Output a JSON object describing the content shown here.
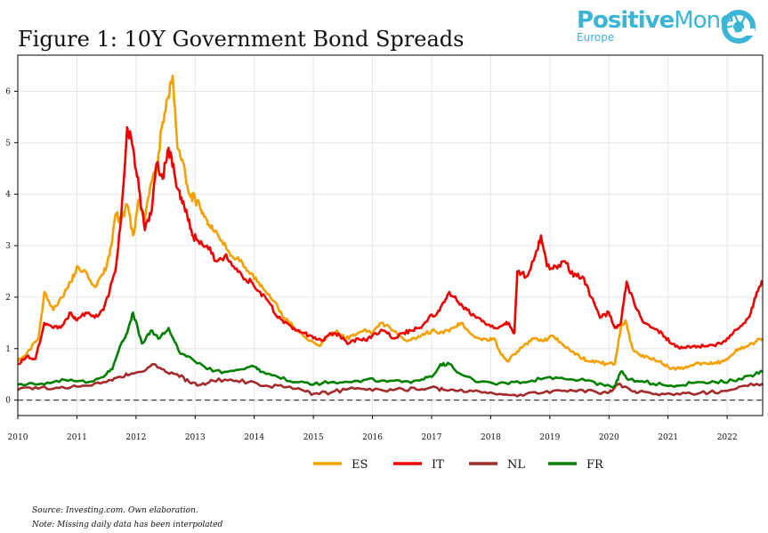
{
  "title": "Figure 1: 10Y Government Bond Spreads",
  "logo": {
    "brand_positive": "Positive",
    "brand_money": "Money",
    "region": "Europe"
  },
  "colors": {
    "ES": "#f5a000",
    "IT": "#ee0000",
    "NL": "#a52a2a",
    "FR": "#008000",
    "logo": "#3ab5d6"
  },
  "notes": {
    "source": "Source: Investing.com. Own elaboration.",
    "missing": "Note: Missing daily data has been interpolated"
  },
  "chart_data": {
    "type": "line",
    "title": "Figure 1: 10Y Government Bond Spreads",
    "xlabel": "",
    "ylabel": "",
    "xlim": [
      2010.0,
      2022.6
    ],
    "ylim": [
      -0.3,
      6.7
    ],
    "grid": true,
    "legend_position": "bottom-center",
    "x_ticks": [
      2010,
      2011,
      2012,
      2013,
      2014,
      2015,
      2016,
      2017,
      2018,
      2019,
      2020,
      2021,
      2022
    ],
    "x_tick_labels": [
      "2010",
      "2011",
      "2012",
      "2013",
      "2014",
      "2015",
      "2016",
      "2017",
      "2018",
      "2019",
      "2020",
      "2021",
      "2022"
    ],
    "y_ticks": [
      0,
      1,
      2,
      3,
      4,
      5,
      6
    ],
    "y_tick_labels": [
      "0",
      "1",
      "2",
      "3",
      "4",
      "5",
      "6"
    ],
    "reference_line": {
      "y": 0,
      "style": "dashed"
    },
    "series": [
      {
        "name": "ES",
        "color": "#f5a000",
        "x": [
          2010.0,
          2010.15,
          2010.35,
          2010.45,
          2010.6,
          2010.75,
          2010.9,
          2011.0,
          2011.15,
          2011.3,
          2011.45,
          2011.55,
          2011.65,
          2011.75,
          2011.85,
          2011.95,
          2012.05,
          2012.15,
          2012.25,
          2012.35,
          2012.45,
          2012.55,
          2012.62,
          2012.7,
          2012.8,
          2012.9,
          2013.0,
          2013.1,
          2013.2,
          2013.3,
          2013.45,
          2013.6,
          2013.75,
          2013.9,
          2014.05,
          2014.2,
          2014.35,
          2014.5,
          2014.65,
          2014.8,
          2014.95,
          2015.1,
          2015.25,
          2015.4,
          2015.55,
          2015.7,
          2015.85,
          2016.0,
          2016.15,
          2016.3,
          2016.45,
          2016.6,
          2016.75,
          2016.9,
          2017.05,
          2017.2,
          2017.35,
          2017.5,
          2017.65,
          2017.8,
          2017.95,
          2018.05,
          2018.15,
          2018.3,
          2018.45,
          2018.6,
          2018.75,
          2018.9,
          2019.05,
          2019.2,
          2019.35,
          2019.5,
          2019.65,
          2019.8,
          2019.95,
          2020.1,
          2020.2,
          2020.28,
          2020.4,
          2020.55,
          2020.7,
          2020.85,
          2021.0,
          2021.15,
          2021.3,
          2021.45,
          2021.6,
          2021.75,
          2021.9,
          2022.05,
          2022.2,
          2022.35,
          2022.5,
          2022.6
        ],
        "values": [
          0.75,
          0.9,
          1.2,
          2.1,
          1.75,
          2.0,
          2.3,
          2.6,
          2.5,
          2.2,
          2.45,
          2.8,
          3.6,
          3.5,
          3.8,
          3.2,
          3.9,
          3.5,
          4.2,
          4.5,
          5.4,
          5.9,
          6.3,
          4.9,
          4.6,
          4.0,
          3.9,
          3.7,
          3.5,
          3.3,
          3.1,
          2.8,
          2.7,
          2.5,
          2.3,
          2.1,
          1.9,
          1.6,
          1.45,
          1.3,
          1.15,
          1.05,
          1.25,
          1.35,
          1.2,
          1.25,
          1.35,
          1.3,
          1.5,
          1.4,
          1.25,
          1.15,
          1.2,
          1.3,
          1.35,
          1.3,
          1.4,
          1.5,
          1.3,
          1.2,
          1.15,
          1.2,
          0.95,
          0.75,
          0.95,
          1.1,
          1.2,
          1.15,
          1.25,
          1.1,
          0.95,
          0.85,
          0.75,
          0.75,
          0.7,
          0.7,
          1.4,
          1.55,
          1.0,
          0.85,
          0.8,
          0.75,
          0.65,
          0.62,
          0.65,
          0.7,
          0.72,
          0.7,
          0.75,
          0.85,
          1.0,
          1.05,
          1.15,
          1.2
        ]
      },
      {
        "name": "IT",
        "color": "#ee0000",
        "x": [
          2010.0,
          2010.15,
          2010.3,
          2010.45,
          2010.6,
          2010.75,
          2010.9,
          2011.0,
          2011.15,
          2011.3,
          2011.45,
          2011.55,
          2011.65,
          2011.75,
          2011.85,
          2011.95,
          2012.05,
          2012.15,
          2012.25,
          2012.35,
          2012.45,
          2012.55,
          2012.65,
          2012.75,
          2012.85,
          2012.95,
          2013.05,
          2013.2,
          2013.35,
          2013.5,
          2013.65,
          2013.8,
          2013.95,
          2014.1,
          2014.25,
          2014.4,
          2014.55,
          2014.7,
          2014.85,
          2015.0,
          2015.15,
          2015.3,
          2015.45,
          2015.6,
          2015.75,
          2015.9,
          2016.05,
          2016.2,
          2016.35,
          2016.5,
          2016.65,
          2016.8,
          2016.95,
          2017.1,
          2017.2,
          2017.3,
          2017.45,
          2017.6,
          2017.75,
          2017.9,
          2018.05,
          2018.2,
          2018.3,
          2018.4,
          2018.45,
          2018.6,
          2018.75,
          2018.85,
          2018.95,
          2019.1,
          2019.25,
          2019.4,
          2019.55,
          2019.7,
          2019.85,
          2020.0,
          2020.1,
          2020.2,
          2020.3,
          2020.45,
          2020.6,
          2020.75,
          2020.9,
          2021.05,
          2021.2,
          2021.35,
          2021.5,
          2021.65,
          2021.8,
          2021.95,
          2022.1,
          2022.25,
          2022.4,
          2022.5,
          2022.6
        ],
        "values": [
          0.7,
          0.85,
          0.8,
          1.5,
          1.4,
          1.45,
          1.7,
          1.55,
          1.7,
          1.6,
          1.75,
          2.1,
          2.5,
          3.6,
          5.3,
          4.9,
          4.1,
          3.3,
          3.6,
          4.6,
          4.3,
          4.9,
          4.4,
          3.9,
          3.7,
          3.2,
          3.1,
          3.0,
          2.7,
          2.8,
          2.6,
          2.4,
          2.3,
          2.1,
          1.9,
          1.6,
          1.5,
          1.35,
          1.3,
          1.2,
          1.15,
          1.3,
          1.25,
          1.1,
          1.2,
          1.15,
          1.3,
          1.35,
          1.2,
          1.3,
          1.35,
          1.4,
          1.6,
          1.7,
          1.9,
          2.1,
          1.9,
          1.75,
          1.6,
          1.5,
          1.4,
          1.45,
          1.5,
          1.3,
          2.5,
          2.4,
          2.8,
          3.2,
          2.6,
          2.6,
          2.7,
          2.4,
          2.4,
          2.0,
          1.6,
          1.7,
          1.4,
          1.5,
          2.3,
          1.8,
          1.5,
          1.4,
          1.3,
          1.1,
          1.0,
          1.05,
          1.05,
          1.05,
          1.05,
          1.15,
          1.3,
          1.45,
          1.7,
          2.1,
          2.3
        ]
      },
      {
        "name": "NL",
        "color": "#a52a2a",
        "x": [
          2010.0,
          2010.3,
          2010.6,
          2010.9,
          2011.2,
          2011.5,
          2011.7,
          2011.9,
          2012.1,
          2012.3,
          2012.5,
          2012.7,
          2012.9,
          2013.1,
          2013.3,
          2013.6,
          2013.9,
          2014.2,
          2014.5,
          2014.8,
          2015.0,
          2015.3,
          2015.6,
          2015.9,
          2016.2,
          2016.5,
          2016.8,
          2017.0,
          2017.2,
          2017.4,
          2017.7,
          2018.0,
          2018.3,
          2018.6,
          2018.9,
          2019.2,
          2019.5,
          2019.8,
          2020.0,
          2020.15,
          2020.3,
          2020.5,
          2020.8,
          2021.1,
          2021.4,
          2021.7,
          2022.0,
          2022.3,
          2022.6
        ],
        "values": [
          0.2,
          0.25,
          0.22,
          0.25,
          0.28,
          0.35,
          0.45,
          0.5,
          0.55,
          0.7,
          0.55,
          0.5,
          0.35,
          0.3,
          0.38,
          0.4,
          0.35,
          0.28,
          0.25,
          0.2,
          0.12,
          0.15,
          0.22,
          0.2,
          0.18,
          0.22,
          0.2,
          0.25,
          0.2,
          0.18,
          0.17,
          0.15,
          0.1,
          0.12,
          0.15,
          0.18,
          0.2,
          0.15,
          0.15,
          0.3,
          0.25,
          0.15,
          0.12,
          0.1,
          0.12,
          0.15,
          0.18,
          0.28,
          0.32
        ]
      },
      {
        "name": "FR",
        "color": "#008000",
        "x": [
          2010.0,
          2010.3,
          2010.6,
          2010.9,
          2011.2,
          2011.45,
          2011.6,
          2011.75,
          2011.85,
          2011.95,
          2012.1,
          2012.25,
          2012.4,
          2012.55,
          2012.75,
          2012.95,
          2013.2,
          2013.5,
          2013.8,
          2014.0,
          2014.1,
          2014.4,
          2014.7,
          2015.0,
          2015.3,
          2015.6,
          2015.9,
          2016.2,
          2016.5,
          2016.8,
          2017.0,
          2017.15,
          2017.3,
          2017.5,
          2017.8,
          2018.1,
          2018.4,
          2018.7,
          2019.0,
          2019.3,
          2019.6,
          2019.9,
          2020.1,
          2020.2,
          2020.35,
          2020.6,
          2020.9,
          2021.2,
          2021.5,
          2021.8,
          2022.1,
          2022.4,
          2022.6
        ],
        "values": [
          0.3,
          0.3,
          0.35,
          0.4,
          0.35,
          0.45,
          0.6,
          1.1,
          1.3,
          1.7,
          1.1,
          1.35,
          1.2,
          1.4,
          0.9,
          0.8,
          0.6,
          0.55,
          0.6,
          0.65,
          0.55,
          0.45,
          0.35,
          0.3,
          0.35,
          0.35,
          0.4,
          0.38,
          0.35,
          0.38,
          0.45,
          0.7,
          0.7,
          0.5,
          0.35,
          0.3,
          0.35,
          0.38,
          0.45,
          0.4,
          0.38,
          0.3,
          0.28,
          0.55,
          0.4,
          0.35,
          0.3,
          0.28,
          0.35,
          0.35,
          0.38,
          0.48,
          0.55
        ]
      }
    ]
  }
}
